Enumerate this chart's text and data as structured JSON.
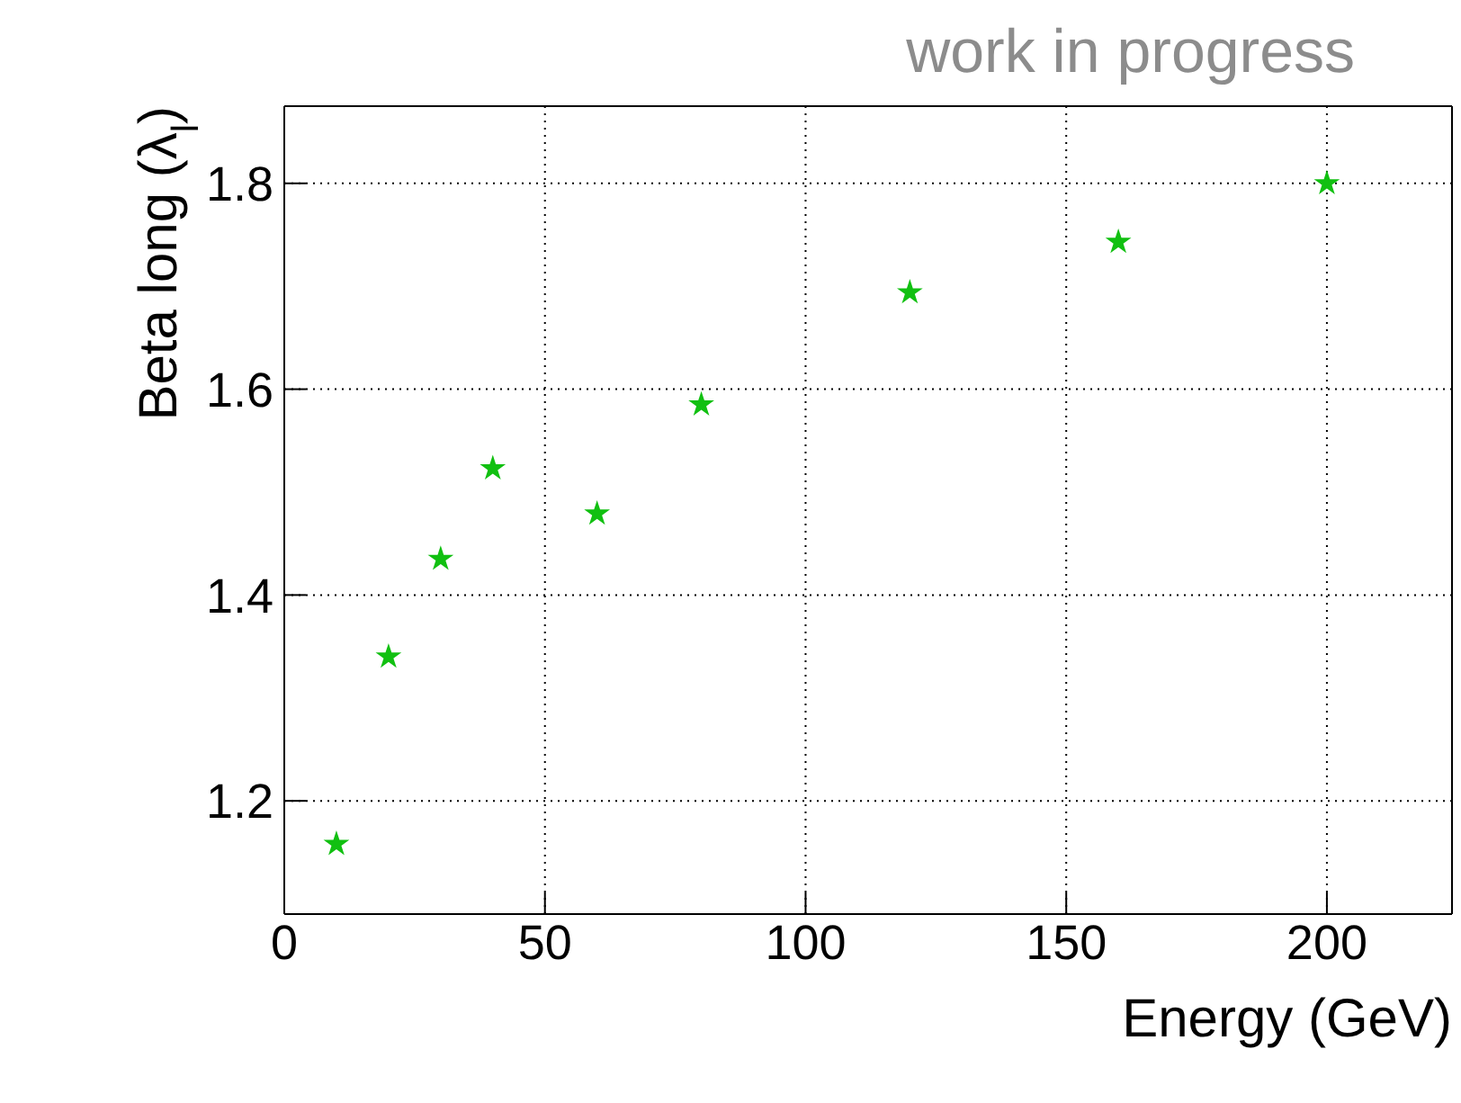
{
  "chart_data": {
    "type": "scatter",
    "xlabel": "Energy (GeV)",
    "ylabel": "Beta long (λ$_{l}$)",
    "annotations": [
      "work in progress"
    ],
    "x": [
      10,
      20,
      30,
      40,
      60,
      80,
      120,
      160,
      200
    ],
    "series": [
      {
        "color": "#11c011",
        "values": [
          1.158,
          1.34,
          1.435,
          1.523,
          1.479,
          1.585,
          1.694,
          1.743,
          1.8
        ]
      }
    ],
    "xlim": [
      0,
      224
    ],
    "xticks": [
      0,
      50,
      100,
      150,
      200
    ],
    "ylim": [
      1.09,
      1.875
    ],
    "yticks": [
      1.2,
      1.4,
      1.6,
      1.8
    ],
    "grid": true,
    "marker": "star",
    "legend": false
  }
}
